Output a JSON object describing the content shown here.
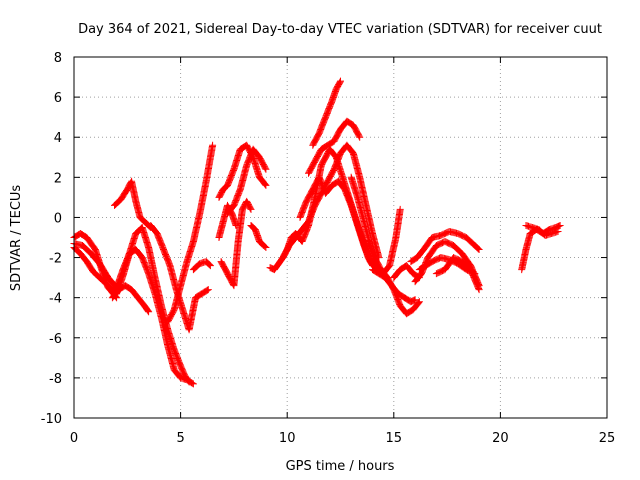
{
  "chart_data": {
    "type": "scatter",
    "title": "Day 364 of 2021, Sidereal Day-to-day VTEC variation (SDTVAR) for receiver cuut",
    "xlabel": "GPS time / hours",
    "ylabel": "SDTVAR / TECUs",
    "xlim": [
      0,
      25
    ],
    "ylim": [
      -10,
      8
    ],
    "xticks": [
      0,
      5,
      10,
      15,
      20,
      25
    ],
    "yticks": [
      -10,
      -8,
      -6,
      -4,
      -2,
      0,
      2,
      4,
      6,
      8
    ],
    "grid": true,
    "marker": "+",
    "color": "#ff0000",
    "tracks": [
      {
        "x": [
          0.0,
          0.3,
          0.6,
          1.0,
          1.3,
          1.6,
          2.0
        ],
        "y": [
          -1.0,
          -0.8,
          -1.0,
          -1.6,
          -2.6,
          -3.5,
          -4.0
        ]
      },
      {
        "x": [
          0.0,
          0.4,
          0.8,
          1.2,
          1.6,
          2.0,
          2.3,
          2.6,
          2.9,
          3.2,
          3.5,
          3.8,
          4.1,
          4.4,
          4.7,
          5.0,
          5.3,
          5.6
        ],
        "y": [
          -1.3,
          -1.4,
          -1.8,
          -2.3,
          -3.0,
          -3.5,
          -2.6,
          -1.8,
          -1.6,
          -2.0,
          -2.8,
          -3.8,
          -5.0,
          -6.4,
          -7.6,
          -8.0,
          -8.1,
          -8.3
        ]
      },
      {
        "x": [
          0.0,
          0.3,
          0.6,
          0.9,
          1.2,
          1.5,
          1.8,
          2.0
        ],
        "y": [
          -1.5,
          -1.8,
          -2.2,
          -2.7,
          -3.0,
          -3.3,
          -3.6,
          -3.8
        ]
      },
      {
        "x": [
          1.8,
          2.1,
          2.4,
          2.7,
          3.0,
          3.3,
          3.5
        ],
        "y": [
          -4.0,
          -3.6,
          -3.4,
          -3.6,
          -4.0,
          -4.4,
          -4.7
        ]
      },
      {
        "x": [
          1.9,
          2.2,
          2.5,
          2.7,
          2.9,
          3.1,
          3.4,
          3.6
        ],
        "y": [
          0.6,
          0.9,
          1.4,
          1.8,
          0.8,
          0.0,
          -0.3,
          -0.5
        ]
      },
      {
        "x": [
          2.0,
          2.3,
          2.6,
          2.9,
          3.2,
          3.5,
          3.8,
          4.1,
          4.4,
          4.7,
          5.0,
          5.2,
          5.4
        ],
        "y": [
          -3.8,
          -2.9,
          -1.8,
          -0.8,
          -0.5,
          -1.5,
          -3.0,
          -4.4,
          -5.6,
          -6.6,
          -7.4,
          -7.9,
          -8.2
        ]
      },
      {
        "x": [
          3.6,
          3.9,
          4.2,
          4.5,
          4.8,
          5.1,
          5.4,
          5.7,
          6.0,
          6.3
        ],
        "y": [
          -0.4,
          -0.8,
          -1.6,
          -2.4,
          -3.6,
          -4.6,
          -5.6,
          -4.0,
          -3.8,
          -3.6
        ]
      },
      {
        "x": [
          4.4,
          4.7,
          5.0,
          5.3,
          5.6,
          5.9,
          6.2,
          6.5
        ],
        "y": [
          -5.2,
          -4.6,
          -3.4,
          -2.2,
          -1.2,
          0.2,
          1.8,
          3.6
        ]
      },
      {
        "x": [
          5.6,
          5.9,
          6.2,
          6.4
        ],
        "y": [
          -2.6,
          -2.3,
          -2.2,
          -2.4
        ]
      },
      {
        "x": [
          6.9,
          7.1,
          7.3,
          7.5,
          7.7,
          7.9,
          8.1,
          8.3
        ],
        "y": [
          -2.2,
          -2.6,
          -3.0,
          -3.4,
          -1.2,
          0.4,
          0.8,
          0.4
        ]
      },
      {
        "x": [
          6.8,
          7.0,
          7.2,
          7.5,
          7.8,
          8.1,
          8.4,
          8.7,
          9.0
        ],
        "y": [
          1.0,
          1.4,
          1.6,
          2.4,
          3.4,
          3.6,
          3.0,
          2.0,
          1.6
        ]
      },
      {
        "x": [
          7.2,
          7.5,
          7.8,
          8.1,
          8.4,
          8.7,
          9.0
        ],
        "y": [
          0.2,
          0.6,
          1.4,
          2.6,
          3.4,
          3.0,
          2.4
        ]
      },
      {
        "x": [
          6.8,
          7.0,
          7.2,
          7.4,
          7.6
        ],
        "y": [
          -1.0,
          -0.2,
          0.6,
          0.2,
          -0.4
        ]
      },
      {
        "x": [
          8.3,
          8.5,
          8.7,
          8.9,
          9.0
        ],
        "y": [
          -0.4,
          -0.6,
          -1.2,
          -1.4,
          -1.5
        ]
      },
      {
        "x": [
          9.2,
          9.4,
          9.6,
          9.8,
          10.0,
          10.2,
          10.4,
          10.7,
          11.0,
          11.3,
          11.6,
          12.0,
          12.3,
          12.6,
          12.9,
          13.2,
          13.5,
          13.8,
          14.0
        ],
        "y": [
          -2.5,
          -2.6,
          -2.3,
          -2.0,
          -1.6,
          -1.0,
          -0.8,
          -1.2,
          -0.4,
          1.0,
          2.6,
          3.4,
          3.0,
          2.0,
          1.0,
          0.0,
          -1.0,
          -2.0,
          -2.4
        ]
      },
      {
        "x": [
          9.8,
          10.1,
          10.4,
          10.7,
          11.0,
          11.3,
          11.6,
          11.9,
          12.2,
          12.5,
          12.8,
          13.1,
          13.4,
          13.7,
          14.0,
          14.3
        ],
        "y": [
          -2.0,
          -1.4,
          -1.0,
          -0.6,
          -0.2,
          0.6,
          1.2,
          1.8,
          2.4,
          3.2,
          3.6,
          3.2,
          2.0,
          0.6,
          -0.8,
          -2.0
        ]
      },
      {
        "x": [
          10.6,
          10.9,
          11.2,
          11.5,
          11.8,
          12.1,
          12.4,
          12.7,
          13.0,
          13.3,
          13.6,
          13.9,
          14.2
        ],
        "y": [
          0.0,
          0.8,
          1.4,
          2.0,
          1.2,
          1.6,
          1.8,
          1.4,
          0.6,
          -0.4,
          -1.4,
          -2.2,
          -2.6
        ]
      },
      {
        "x": [
          11.2,
          11.5,
          11.8,
          12.1,
          12.3,
          12.5
        ],
        "y": [
          3.6,
          4.2,
          5.0,
          5.8,
          6.4,
          6.8
        ]
      },
      {
        "x": [
          11.0,
          11.3,
          11.6,
          11.9,
          12.2,
          12.5,
          12.8,
          13.1,
          13.4
        ],
        "y": [
          2.2,
          2.8,
          3.4,
          3.6,
          3.8,
          4.4,
          4.8,
          4.6,
          4.0
        ]
      },
      {
        "x": [
          13.0,
          13.3,
          13.6,
          13.9,
          14.2,
          14.5,
          14.8,
          15.1,
          15.3
        ],
        "y": [
          2.0,
          1.0,
          -0.2,
          -1.4,
          -2.4,
          -2.8,
          -2.4,
          -1.0,
          0.4
        ]
      },
      {
        "x": [
          13.8,
          14.1,
          14.4,
          14.7,
          15.0,
          15.3,
          15.6,
          15.9,
          16.2
        ],
        "y": [
          -1.2,
          -2.0,
          -2.6,
          -3.0,
          -3.6,
          -4.4,
          -4.8,
          -4.6,
          -4.2
        ]
      },
      {
        "x": [
          14.0,
          14.3,
          14.6,
          14.9,
          15.2,
          15.5,
          15.8,
          16.0
        ],
        "y": [
          -2.6,
          -2.8,
          -3.0,
          -3.4,
          -3.8,
          -4.0,
          -4.2,
          -4.1
        ]
      },
      {
        "x": [
          15.0,
          15.3,
          15.6,
          15.9,
          16.2
        ],
        "y": [
          -3.0,
          -2.6,
          -2.4,
          -2.8,
          -3.0
        ]
      },
      {
        "x": [
          16.0,
          16.3,
          16.6,
          17.0,
          17.4,
          17.8,
          18.2,
          18.6,
          19.0
        ],
        "y": [
          -3.2,
          -2.8,
          -2.0,
          -1.4,
          -1.2,
          -1.4,
          -1.8,
          -2.4,
          -3.4
        ]
      },
      {
        "x": [
          15.8,
          16.1,
          16.4,
          16.8,
          17.2,
          17.6,
          18.0,
          18.4,
          18.8,
          19.0
        ],
        "y": [
          -2.2,
          -2.0,
          -1.6,
          -1.0,
          -0.9,
          -0.7,
          -0.8,
          -1.0,
          -1.4,
          -1.6
        ]
      },
      {
        "x": [
          16.2,
          16.5,
          16.8,
          17.2,
          17.6,
          18.0,
          18.4,
          18.8
        ],
        "y": [
          -2.6,
          -2.4,
          -2.2,
          -2.0,
          -2.1,
          -2.3,
          -2.6,
          -2.8
        ]
      },
      {
        "x": [
          17.0,
          17.4,
          17.8,
          18.2,
          18.6,
          19.0
        ],
        "y": [
          -2.8,
          -2.6,
          -2.0,
          -2.2,
          -2.6,
          -3.6
        ]
      },
      {
        "x": [
          21.0,
          21.2,
          21.4,
          21.7,
          22.0,
          22.3,
          22.6,
          22.8
        ],
        "y": [
          -2.6,
          -1.6,
          -0.8,
          -0.6,
          -0.8,
          -0.6,
          -0.5,
          -0.4
        ]
      },
      {
        "x": [
          21.2,
          21.5,
          21.8,
          22.1,
          22.4,
          22.7
        ],
        "y": [
          -0.4,
          -0.5,
          -0.6,
          -0.9,
          -0.8,
          -0.7
        ]
      }
    ]
  }
}
